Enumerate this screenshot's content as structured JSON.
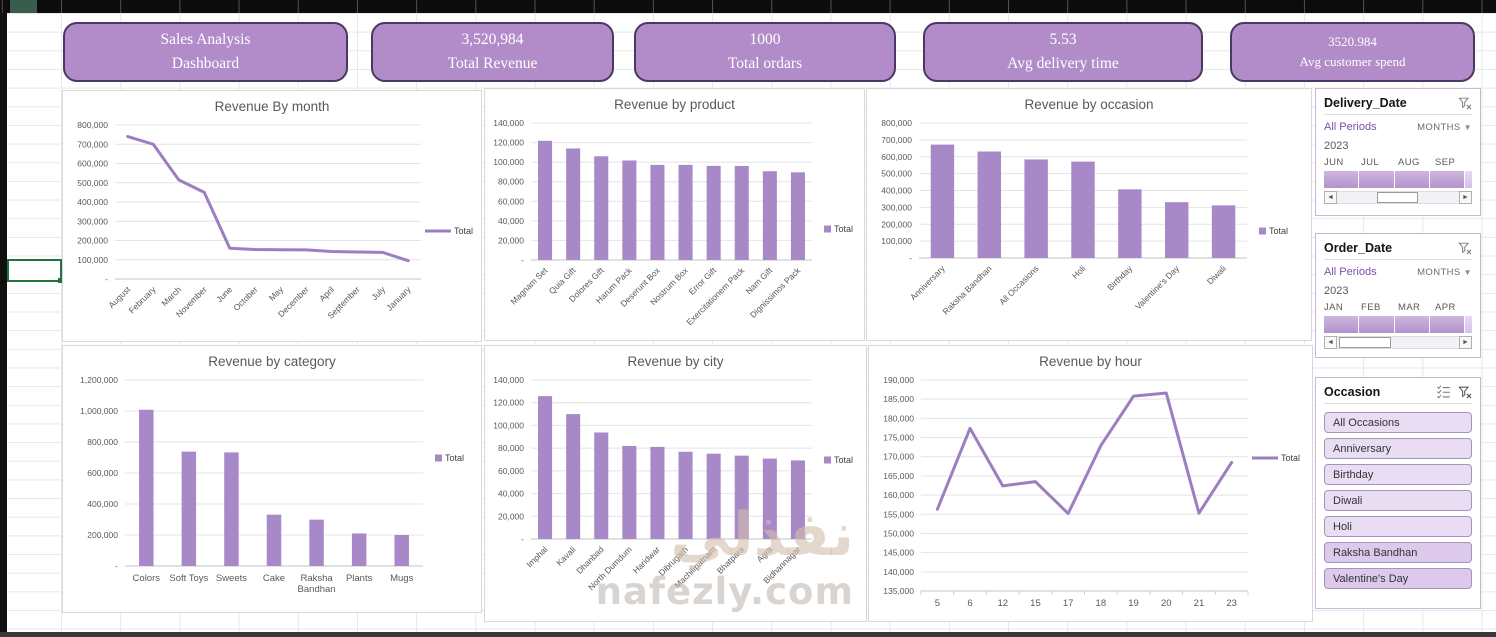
{
  "colors": {
    "bar": "#a789c7",
    "line": "#9d7ec1",
    "card_fill": "#b18cc9",
    "card_border": "#4a3764",
    "slicer_button_fill": "#e9ddf3",
    "timeline_band": "#b392cc",
    "active_cell_border": "#217346"
  },
  "icons": {
    "clear_filter": "funnel-x",
    "multi_select": "checklist",
    "dropdown": "chevron-down",
    "scroll_left": "left-arrow",
    "scroll_right": "right-arrow"
  },
  "kpi_cards": [
    {
      "line1": "Sales Analysis",
      "line2": "Dashboard"
    },
    {
      "line1": "3,520,984",
      "line2": "Total Revenue"
    },
    {
      "line1": "1000",
      "line2": "Total ordars"
    },
    {
      "line1": "5.53",
      "line2": "Avg delivery time"
    },
    {
      "line1": "3520.984",
      "line2": "Avg customer spend"
    }
  ],
  "slicers": {
    "delivery": {
      "title": "Delivery_Date",
      "period_label": "All Periods",
      "granularity": "MONTHS",
      "year": "2023",
      "months": [
        "JUN",
        "JUL",
        "AUG",
        "SEP"
      ]
    },
    "order": {
      "title": "Order_Date",
      "period_label": "All Periods",
      "granularity": "MONTHS",
      "year": "2023",
      "months": [
        "JAN",
        "FEB",
        "MAR",
        "APR"
      ]
    },
    "occasion": {
      "title": "Occasion",
      "items": [
        {
          "label": "All Occasions",
          "variant": "light"
        },
        {
          "label": "Anniversary",
          "variant": "light"
        },
        {
          "label": "Birthday",
          "variant": "light"
        },
        {
          "label": "Diwali",
          "variant": "light"
        },
        {
          "label": "Holi",
          "variant": "light"
        },
        {
          "label": "Raksha Bandhan",
          "variant": "dark"
        },
        {
          "label": "Valentine's Day",
          "variant": "dark"
        }
      ]
    }
  },
  "watermark": {
    "arabic": "نفذلي",
    "latin": "nafezly.com"
  },
  "chart_data": [
    {
      "id": "month",
      "type": "line",
      "title": "Revenue By month",
      "legend": "Total",
      "color": "#9d7ec1",
      "categories": [
        "August",
        "February",
        "March",
        "November",
        "June",
        "October",
        "May",
        "December",
        "April",
        "September",
        "July",
        "January"
      ],
      "values": [
        740000,
        700000,
        515000,
        450000,
        160000,
        153000,
        152000,
        151000,
        143000,
        140000,
        138000,
        95000
      ],
      "xlabel": "",
      "ylabel": "",
      "ylim": [
        0,
        800000
      ],
      "ystep": 100000,
      "grid": true,
      "legend_position": "right"
    },
    {
      "id": "product",
      "type": "bar",
      "title": "Revenue by product",
      "legend": "Total",
      "color": "#a789c7",
      "categories": [
        "Magnam Set",
        "Quia Gift",
        "Dolores Gift",
        "Harum Pack",
        "Deserunt Box",
        "Nostrum Box",
        "Error Gift",
        "Exercitationem Pack",
        "Nam Gift",
        "Dignissimos Pack"
      ],
      "values": [
        121800,
        114000,
        106000,
        101700,
        97200,
        97200,
        96200,
        96100,
        90700,
        89600
      ],
      "xlabel": "",
      "ylabel": "",
      "ylim": [
        0,
        140000
      ],
      "ystep": 20000,
      "grid": true,
      "legend_position": "right"
    },
    {
      "id": "occasion",
      "type": "bar",
      "title": "Revenue by occasion",
      "legend": "Total",
      "color": "#a789c7",
      "categories": [
        "Anniversary",
        "Raksha Bandhan",
        "All Occasions",
        "Holi",
        "Birthday",
        "Valentine's Day",
        "Diwali"
      ],
      "values": [
        672000,
        631000,
        584000,
        571000,
        407000,
        331000,
        312000
      ],
      "xlabel": "",
      "ylabel": "",
      "ylim": [
        0,
        800000
      ],
      "ystep": 100000,
      "grid": true,
      "legend_position": "right"
    },
    {
      "id": "category",
      "type": "bar",
      "title": "Revenue by category",
      "legend": "Total",
      "color": "#a789c7",
      "categories": [
        "Colors",
        "Soft Toys",
        "Sweets",
        "Cake",
        "Raksha Bandhan",
        "Plants",
        "Mugs"
      ],
      "values": [
        1008000,
        738000,
        733000,
        331000,
        299000,
        210000,
        200000
      ],
      "xlabel": "",
      "ylabel": "",
      "ylim": [
        0,
        1200000
      ],
      "ystep": 200000,
      "grid": true,
      "legend_position": "right"
    },
    {
      "id": "city",
      "type": "bar",
      "title": "Revenue by city",
      "legend": "Total",
      "color": "#a789c7",
      "categories": [
        "Imphal",
        "Kavali",
        "Dhanbad",
        "North Dumdum",
        "Haridwar",
        "Dibrugarh",
        "Machilipatnam",
        "Bhatpara",
        "Agra",
        "Bidhannagar"
      ],
      "values": [
        125800,
        110000,
        93800,
        81900,
        81100,
        76800,
        75100,
        73400,
        70800,
        69200
      ],
      "xlabel": "",
      "ylabel": "",
      "ylim": [
        0,
        140000
      ],
      "ystep": 20000,
      "grid": true,
      "legend_position": "right"
    },
    {
      "id": "hour",
      "type": "line",
      "title": "Revenue by hour",
      "legend": "Total",
      "color": "#9d7ec1",
      "categories": [
        "5",
        "6",
        "12",
        "15",
        "17",
        "18",
        "19",
        "20",
        "21",
        "23"
      ],
      "values": [
        156300,
        177400,
        162400,
        163500,
        155200,
        172900,
        185800,
        186600,
        155300,
        168500
      ],
      "xlabel": "",
      "ylabel": "",
      "ylim": [
        135000,
        190000
      ],
      "ystep": 5000,
      "grid": true,
      "legend_position": "right"
    }
  ]
}
